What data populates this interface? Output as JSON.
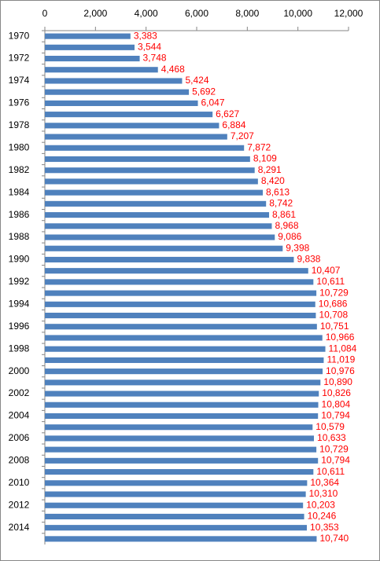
{
  "chart_data": {
    "type": "barh",
    "categories": [
      "1970",
      null,
      "1972",
      null,
      "1974",
      null,
      "1976",
      null,
      "1978",
      null,
      "1980",
      null,
      "1982",
      null,
      "1984",
      null,
      "1986",
      null,
      "1988",
      null,
      "1990",
      null,
      "1992",
      null,
      "1994",
      null,
      "1996",
      null,
      "1998",
      null,
      "2000",
      null,
      "2002",
      null,
      "2004",
      null,
      "2006",
      null,
      "2008",
      null,
      "2010",
      null,
      "2012",
      null,
      "2014",
      null
    ],
    "values": [
      3383,
      3544,
      3748,
      4468,
      5424,
      5692,
      6047,
      6627,
      6884,
      7207,
      7872,
      8109,
      8291,
      8420,
      8613,
      8742,
      8861,
      8968,
      9086,
      9398,
      9838,
      10407,
      10611,
      10729,
      10686,
      10708,
      10751,
      10966,
      11084,
      11019,
      10976,
      10890,
      10826,
      10804,
      10794,
      10579,
      10633,
      10729,
      10794,
      10611,
      10364,
      10310,
      10203,
      10246,
      10353,
      10740
    ],
    "value_labels": [
      "3,383",
      "3,544",
      "3,748",
      "4,468",
      "5,424",
      "5,692",
      "6,047",
      "6,627",
      "6,884",
      "7,207",
      "7,872",
      "8,109",
      "8,291",
      "8,420",
      "8,613",
      "8,742",
      "8,861",
      "8,968",
      "9,086",
      "9,398",
      "9,838",
      "10,407",
      "10,611",
      "10,729",
      "10,686",
      "10,708",
      "10,751",
      "10,966",
      "11,084",
      "11,019",
      "10,976",
      "10,890",
      "10,826",
      "10,804",
      "10,794",
      "10,579",
      "10,633",
      "10,729",
      "10,794",
      "10,611",
      "10,364",
      "10,310",
      "10,203",
      "10,246",
      "10,353",
      "10,740"
    ],
    "color": "#4f81bd",
    "label_color": "#ff0000",
    "xlim": [
      0,
      12000
    ],
    "xticks": [
      0,
      {
        "value": 2000,
        "label": "2,000"
      },
      {
        "value": 4000,
        "label": "4,000"
      },
      {
        "value": 6000,
        "label": "6,000"
      },
      {
        "value": 8000,
        "label": "8,000"
      },
      {
        "value": 10000,
        "label": "10,000"
      },
      {
        "value": 12000,
        "label": "12,000"
      }
    ],
    "grid": false
  }
}
